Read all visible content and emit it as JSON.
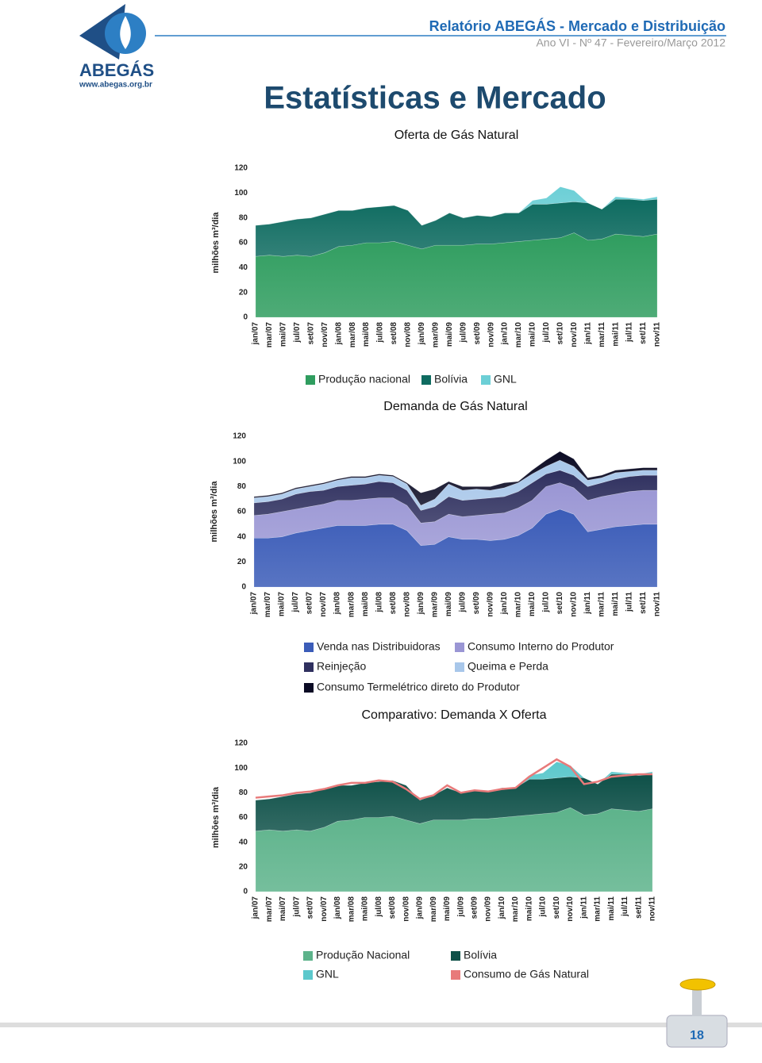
{
  "header": {
    "logo_text": "ABEGÁS",
    "logo_url": "www.abegas.org.br",
    "title": "Relatório ABEGÁS - Mercado e Distribuição",
    "subtitle": "Ano VI - Nº 47 - Fevereiro/Março 2012",
    "section": "Estatísticas e Mercado"
  },
  "page_number": "18",
  "chart_data": [
    {
      "type": "area",
      "title": "Oferta de Gás Natural",
      "y_label": "milhões m³/dia",
      "categories": [
        "jan/07",
        "mar/07",
        "mai/07",
        "jul/07",
        "set/07",
        "nov/07",
        "jan/08",
        "mar/08",
        "mai/08",
        "jul/08",
        "set/08",
        "nov/08",
        "jan/09",
        "mar/09",
        "mai/09",
        "jul/09",
        "set/09",
        "nov/09",
        "jan/10",
        "mar/10",
        "mai/10",
        "jul/10",
        "set/10",
        "nov/10",
        "jan/11",
        "mar/11",
        "mai/11",
        "jul/11",
        "set/11",
        "nov/11"
      ],
      "ylim": [
        0,
        120
      ],
      "yticks": [
        0,
        20,
        40,
        60,
        80,
        100,
        120
      ],
      "stacked": true,
      "series": [
        {
          "name": "Produção nacional",
          "color": "#2f9d5f",
          "values": [
            49,
            50,
            49,
            50,
            49,
            52,
            57,
            58,
            60,
            60,
            61,
            58,
            55,
            58,
            58,
            58,
            59,
            59,
            60,
            61,
            62,
            63,
            64,
            68,
            62,
            63,
            67,
            66,
            65,
            67
          ]
        },
        {
          "name": "Bolívia",
          "color": "#0e6b60",
          "values": [
            25,
            25,
            28,
            29,
            31,
            31,
            29,
            28,
            28,
            29,
            29,
            28,
            19,
            20,
            26,
            22,
            23,
            22,
            24,
            23,
            29,
            28,
            28,
            25,
            30,
            24,
            28,
            29,
            29,
            28
          ]
        },
        {
          "name": "GNL",
          "color": "#6ccfd6",
          "values": [
            0,
            0,
            0,
            0,
            0,
            0,
            0,
            0,
            0,
            0,
            0,
            0,
            0,
            0,
            0,
            0,
            0,
            0,
            0,
            0,
            3,
            5,
            13,
            9,
            0,
            0,
            2,
            1,
            1,
            2
          ]
        }
      ]
    },
    {
      "type": "area",
      "title": "Demanda de Gás Natural",
      "y_label": "milhões m³/dia",
      "categories": [
        "jan/07",
        "mar/07",
        "mai/07",
        "jul/07",
        "set/07",
        "nov/07",
        "jan/08",
        "mar/08",
        "mai/08",
        "jul/08",
        "set/08",
        "nov/08",
        "jan/09",
        "mar/09",
        "mai/09",
        "jul/09",
        "set/09",
        "nov/09",
        "jan/10",
        "mar/10",
        "mai/10",
        "jul/10",
        "set/10",
        "nov/10",
        "jan/11",
        "mar/11",
        "mai/11",
        "jul/11",
        "set/11",
        "nov/11"
      ],
      "ylim": [
        0,
        120
      ],
      "yticks": [
        0,
        20,
        40,
        60,
        80,
        100,
        120
      ],
      "stacked": true,
      "series": [
        {
          "name": "Venda nas Distribuidoras",
          "color": "#3b5cb8",
          "values": [
            39,
            39,
            40,
            43,
            45,
            47,
            49,
            49,
            49,
            50,
            50,
            45,
            33,
            34,
            40,
            38,
            38,
            37,
            38,
            41,
            47,
            58,
            62,
            58,
            44,
            46,
            48,
            49,
            50,
            50
          ]
        },
        {
          "name": "Consumo Interno do Produtor",
          "color": "#9a96d4",
          "values": [
            18,
            19,
            20,
            19,
            19,
            19,
            20,
            20,
            21,
            21,
            21,
            20,
            18,
            18,
            18,
            18,
            19,
            21,
            21,
            22,
            22,
            22,
            21,
            21,
            25,
            26,
            26,
            27,
            27,
            27
          ]
        },
        {
          "name": "Reinjeção",
          "color": "#2f305f",
          "values": [
            10,
            10,
            10,
            12,
            12,
            11,
            11,
            12,
            12,
            13,
            12,
            12,
            10,
            12,
            14,
            13,
            13,
            13,
            13,
            13,
            14,
            10,
            10,
            10,
            11,
            11,
            12,
            12,
            12,
            12
          ]
        },
        {
          "name": "Queima e Perda",
          "color": "#a8c7ea",
          "values": [
            4,
            4,
            4,
            4,
            4,
            5,
            5,
            6,
            5,
            5,
            5,
            5,
            4,
            6,
            10,
            8,
            8,
            6,
            7,
            7,
            7,
            6,
            8,
            7,
            5,
            4,
            5,
            4,
            4,
            4
          ]
        },
        {
          "name": "Consumo Termelétrico direto do Produtor",
          "color": "#0b0b24",
          "values": [
            1,
            1,
            1,
            1,
            1,
            1,
            1,
            1,
            1,
            1,
            1,
            1,
            10,
            8,
            2,
            3,
            2,
            3,
            4,
            1,
            3,
            5,
            7,
            6,
            2,
            2,
            2,
            2,
            2,
            2
          ]
        }
      ]
    },
    {
      "type": "area",
      "title": "Comparativo: Demanda X Oferta",
      "y_label": "milhões m³/dia",
      "categories": [
        "jan/07",
        "mar/07",
        "mai/07",
        "jul/07",
        "set/07",
        "nov/07",
        "jan/08",
        "mar/08",
        "mai/08",
        "jul/08",
        "set/08",
        "nov/08",
        "jan/09",
        "mar/09",
        "mai/09",
        "jul/09",
        "set/09",
        "nov/09",
        "jan/10",
        "mar/10",
        "mai/10",
        "jul/10",
        "set/10",
        "nov/10",
        "jan/11",
        "mar/11",
        "mai/11",
        "jul/11",
        "set/11",
        "nov/11"
      ],
      "ylim": [
        0,
        120
      ],
      "yticks": [
        0,
        20,
        40,
        60,
        80,
        100,
        120
      ],
      "stacked": true,
      "series": [
        {
          "name": "Produção Nacional",
          "color": "#5db38b",
          "values": [
            49,
            50,
            49,
            50,
            49,
            52,
            57,
            58,
            60,
            60,
            61,
            58,
            55,
            58,
            58,
            58,
            59,
            59,
            60,
            61,
            62,
            63,
            64,
            68,
            62,
            63,
            67,
            66,
            65,
            67
          ]
        },
        {
          "name": "Bolívia",
          "color": "#0e5048",
          "values": [
            25,
            25,
            28,
            29,
            31,
            31,
            29,
            28,
            28,
            29,
            29,
            28,
            19,
            20,
            26,
            22,
            23,
            22,
            24,
            23,
            29,
            28,
            28,
            25,
            30,
            24,
            28,
            29,
            29,
            28
          ]
        },
        {
          "name": "GNL",
          "color": "#5cc8cc",
          "values": [
            0,
            0,
            0,
            0,
            0,
            0,
            0,
            0,
            0,
            0,
            0,
            0,
            0,
            0,
            0,
            0,
            0,
            0,
            0,
            0,
            3,
            5,
            13,
            9,
            0,
            0,
            2,
            1,
            1,
            2
          ]
        },
        {
          "name": "Consumo de Gás Natural",
          "color": "#e87a7a",
          "type": "line",
          "values": [
            76,
            77,
            78,
            80,
            81,
            83,
            86,
            88,
            88,
            90,
            89,
            83,
            75,
            78,
            86,
            80,
            82,
            81,
            83,
            84,
            93,
            100,
            107,
            101,
            87,
            89,
            93,
            94,
            95,
            95
          ]
        }
      ]
    }
  ]
}
